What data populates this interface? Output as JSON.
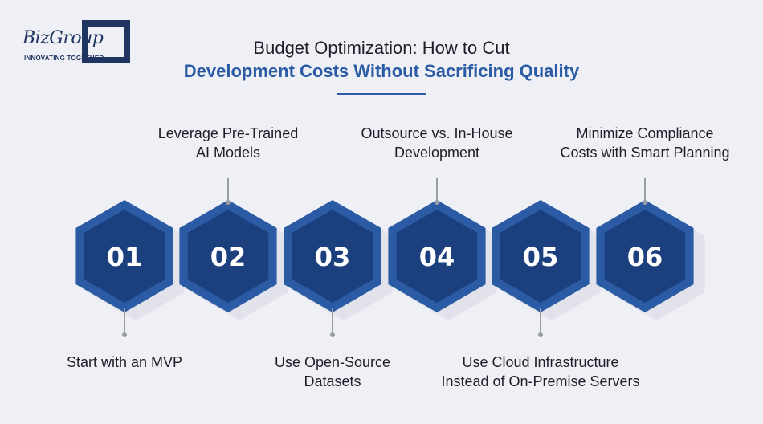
{
  "brand": {
    "name": "BizGroup",
    "tagline": "INNOVATING TOGETHER"
  },
  "title": {
    "line1": "Budget Optimization: How to Cut",
    "line2": "Development Costs Without Sacrificing Quality"
  },
  "colors": {
    "hex_outer": "#2a5ba4",
    "hex_inner": "#1c3f7e",
    "hex_shadow": "#e2e3ea",
    "accent": "#2a5ba4",
    "background": "#eff0f5"
  },
  "steps": [
    {
      "number": "01",
      "lines": [
        "Start with an MVP"
      ],
      "position": "bottom"
    },
    {
      "number": "02",
      "lines": [
        "Leverage Pre-Trained",
        "AI Models"
      ],
      "position": "top"
    },
    {
      "number": "03",
      "lines": [
        "Use Open-Source",
        "Datasets"
      ],
      "position": "bottom"
    },
    {
      "number": "04",
      "lines": [
        "Outsource vs. In-House",
        "Development"
      ],
      "position": "top"
    },
    {
      "number": "05",
      "lines": [
        "Use Cloud Infrastructure",
        "Instead of On-Premise Servers"
      ],
      "position": "bottom"
    },
    {
      "number": "06",
      "lines": [
        "Minimize Compliance",
        "Costs with Smart Planning"
      ],
      "position": "top"
    }
  ]
}
